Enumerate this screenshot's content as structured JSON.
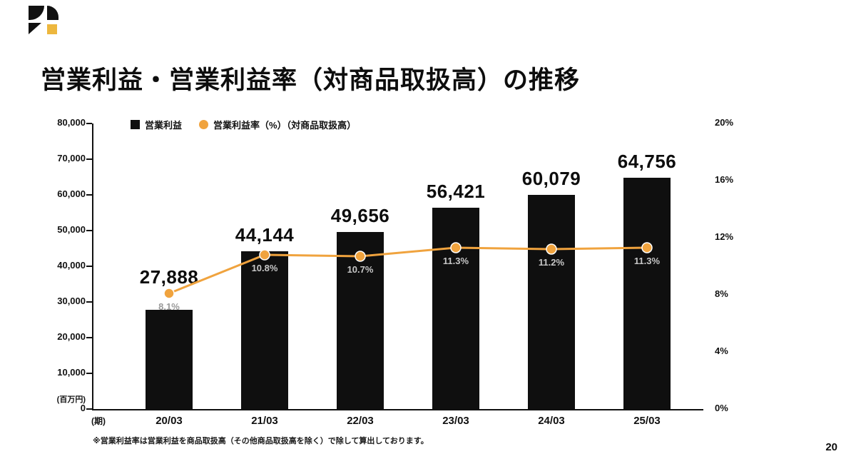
{
  "title": "営業利益・営業利益率（対商品取扱高）の推移",
  "footnote": "※営業利益率は営業利益を商品取扱高（その他商品取扱高を除く）で除して算出しております。",
  "page": {
    "number": "20"
  },
  "logo": {
    "accent_color": "#edb73e",
    "main_color": "#111111"
  },
  "chart_data": {
    "type": "bar",
    "title": "営業利益・営業利益率（対商品取扱高）の推移",
    "categories": [
      "20/03",
      "21/03",
      "22/03",
      "23/03",
      "24/03",
      "25/03"
    ],
    "series": [
      {
        "name": "営業利益",
        "type": "bar",
        "axis": "left",
        "color": "#0f0f0f",
        "values": [
          27888,
          44144,
          49656,
          56421,
          60079,
          64756
        ],
        "labels": [
          "27,888",
          "44,144",
          "49,656",
          "56,421",
          "60,079",
          "64,756"
        ]
      },
      {
        "name": "営業利益率（%）（対商品取扱高）",
        "type": "line",
        "axis": "right",
        "color": "#f0a33e",
        "values": [
          8.1,
          10.8,
          10.7,
          11.3,
          11.2,
          11.3
        ],
        "labels": [
          "8.1%",
          "10.8%",
          "10.7%",
          "11.3%",
          "11.2%",
          "11.3%"
        ]
      }
    ],
    "left_axis": {
      "unit": "(百万円)",
      "max": 80000,
      "min": 0,
      "ticks": [
        "80,000",
        "70,000",
        "60,000",
        "50,000",
        "40,000",
        "30,000",
        "20,000",
        "10,000",
        "0"
      ]
    },
    "right_axis": {
      "max": 20,
      "min": 0,
      "ticks": [
        "20%",
        "16%",
        "12%",
        "8%",
        "4%",
        "0%"
      ]
    },
    "x_axis_unit": "(期)",
    "legend": [
      {
        "label": "営業利益",
        "swatch": "square",
        "color": "#0f0f0f"
      },
      {
        "label": "営業利益率（%）（対商品取扱高）",
        "swatch": "circle",
        "color": "#f0a33e"
      }
    ],
    "grid": false,
    "legend_position": "top-left-inside"
  }
}
